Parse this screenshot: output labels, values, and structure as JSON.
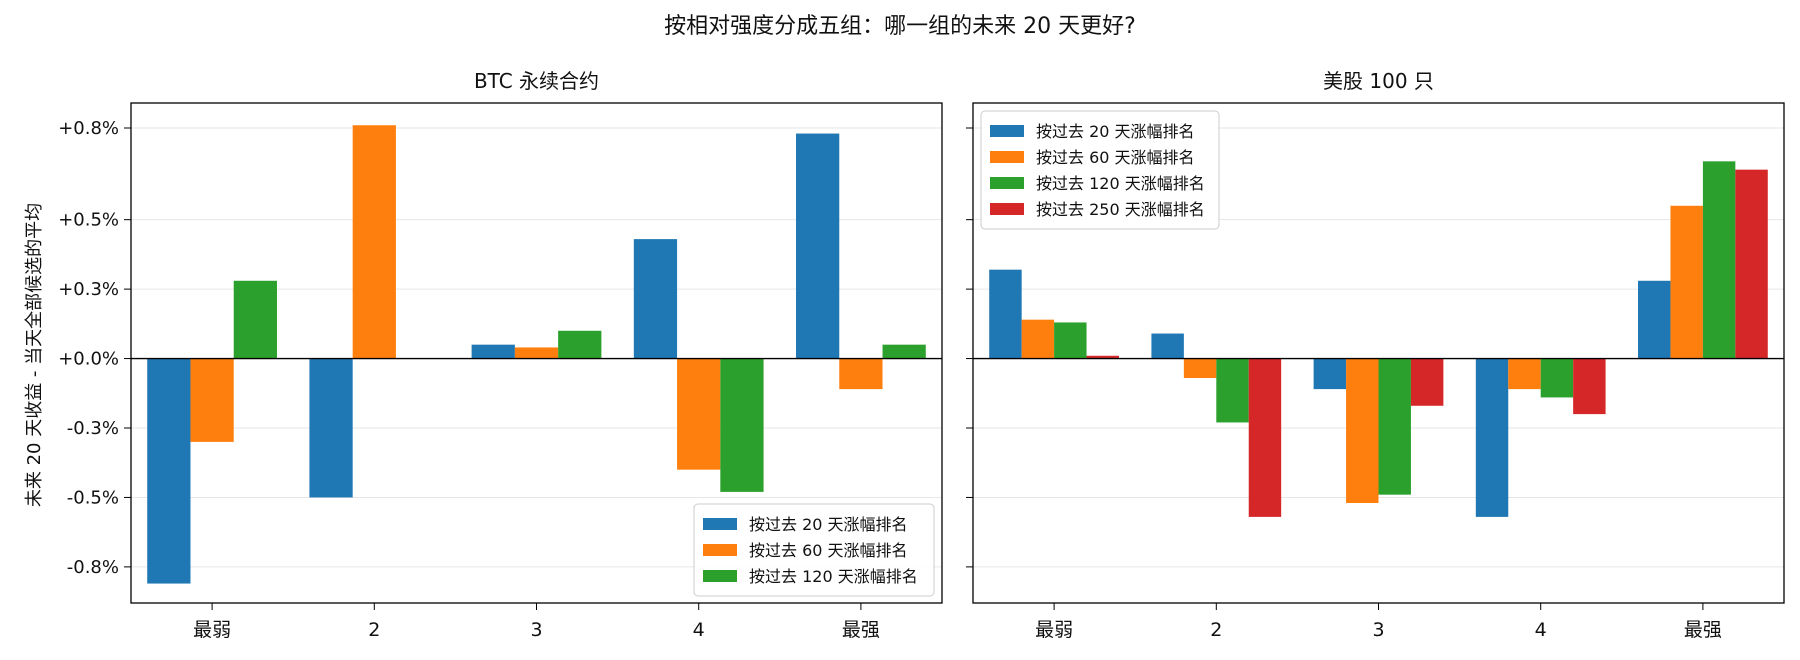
{
  "figure": {
    "title": "按相对强度分成五组：哪一组的未来 20 天更好?",
    "ylabel": "未来 20 天收益 - 当天全部候选的平均"
  },
  "chart_data": [
    {
      "type": "bar",
      "title": "BTC 永续合约",
      "categories": [
        "最弱",
        "2",
        "3",
        "4",
        "最强"
      ],
      "ylim": [
        -0.0088,
        0.0092
      ],
      "yticks": [
        {
          "v": 0.0083,
          "label": "+0.8%"
        },
        {
          "v": 0.005,
          "label": "+0.5%"
        },
        {
          "v": 0.0025,
          "label": "+0.3%"
        },
        {
          "v": 0.0,
          "label": "+0.0%"
        },
        {
          "v": -0.0025,
          "label": "-0.3%"
        },
        {
          "v": -0.005,
          "label": "-0.5%"
        },
        {
          "v": -0.0075,
          "label": "-0.8%"
        }
      ],
      "grid": "horizontal",
      "legend_position": "lower-right",
      "series": [
        {
          "name": "按过去 20 天涨幅排名",
          "color": "#1f77b4",
          "values": [
            -0.0081,
            -0.005,
            0.0005,
            0.0043,
            0.0081
          ]
        },
        {
          "name": "按过去 60 天涨幅排名",
          "color": "#ff7f0e",
          "values": [
            -0.003,
            0.0084,
            0.0004,
            -0.004,
            -0.0011
          ]
        },
        {
          "name": "按过去 120 天涨幅排名",
          "color": "#2ca02c",
          "values": [
            0.0028,
            0.0,
            0.001,
            -0.0048,
            0.0005
          ]
        }
      ]
    },
    {
      "type": "bar",
      "title": "美股 100 只",
      "categories": [
        "最弱",
        "2",
        "3",
        "4",
        "最强"
      ],
      "ylim": [
        -0.0088,
        0.0092
      ],
      "grid": "horizontal",
      "legend_position": "upper-left",
      "series": [
        {
          "name": "按过去 20 天涨幅排名",
          "color": "#1f77b4",
          "values": [
            0.0032,
            0.0009,
            -0.0011,
            -0.0057,
            0.0028
          ]
        },
        {
          "name": "按过去 60 天涨幅排名",
          "color": "#ff7f0e",
          "values": [
            0.0014,
            -0.0007,
            -0.0052,
            -0.0011,
            0.0055
          ]
        },
        {
          "name": "按过去 120 天涨幅排名",
          "color": "#2ca02c",
          "values": [
            0.0013,
            -0.0023,
            -0.0049,
            -0.0014,
            0.0071
          ]
        },
        {
          "name": "按过去 250 天涨幅排名",
          "color": "#d62728",
          "values": [
            0.0001,
            -0.0057,
            -0.0017,
            -0.002,
            0.0068
          ]
        }
      ]
    }
  ]
}
